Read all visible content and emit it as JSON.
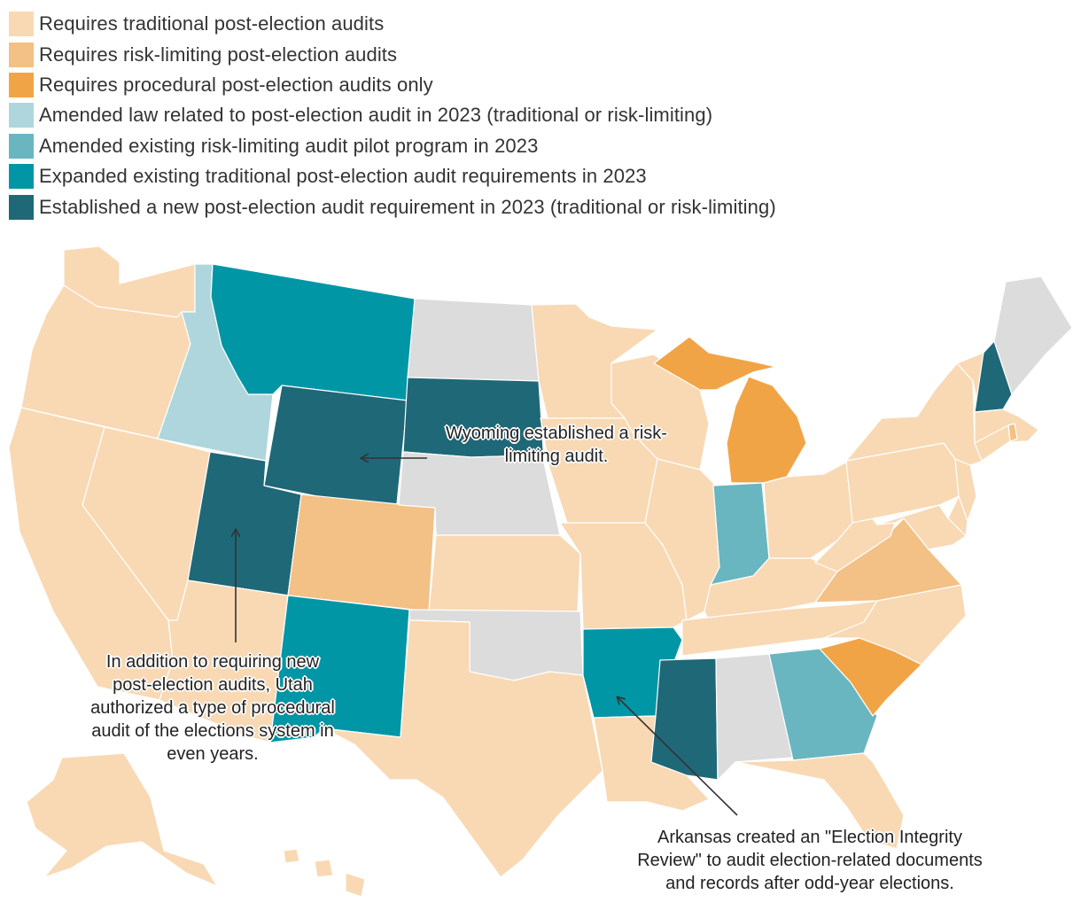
{
  "legend": [
    {
      "label": "Requires traditional post-election audits",
      "color": "#f8d9b4"
    },
    {
      "label": "Requires risk-limiting post-election audits",
      "color": "#f3c085"
    },
    {
      "label": "Requires procedural post-election audits only",
      "color": "#f1a446"
    },
    {
      "label": "Amended law related to post-election audit in 2023 (traditional or risk-limiting)",
      "color": "#aed6dc"
    },
    {
      "label": "Amended existing risk-limiting audit pilot program in 2023",
      "color": "#69b6c1"
    },
    {
      "label": "Expanded existing traditional post-election audit requirements in 2023",
      "color": "#0096a6"
    },
    {
      "label": "Established a new post-election audit requirement in 2023 (traditional or risk-limiting)",
      "color": "#1f6877"
    }
  ],
  "no_data_color": "#dcdcdc",
  "annotations": {
    "wyoming": "Wyoming established a risk-limiting audit.",
    "utah": "In addition to requiring new post-election audits, Utah authorized a type of procedural audit of the elections system in even years.",
    "arkansas": "Arkansas created an \"Election Integrity Review\" to audit election-related documents and records after odd-year elections."
  }
}
